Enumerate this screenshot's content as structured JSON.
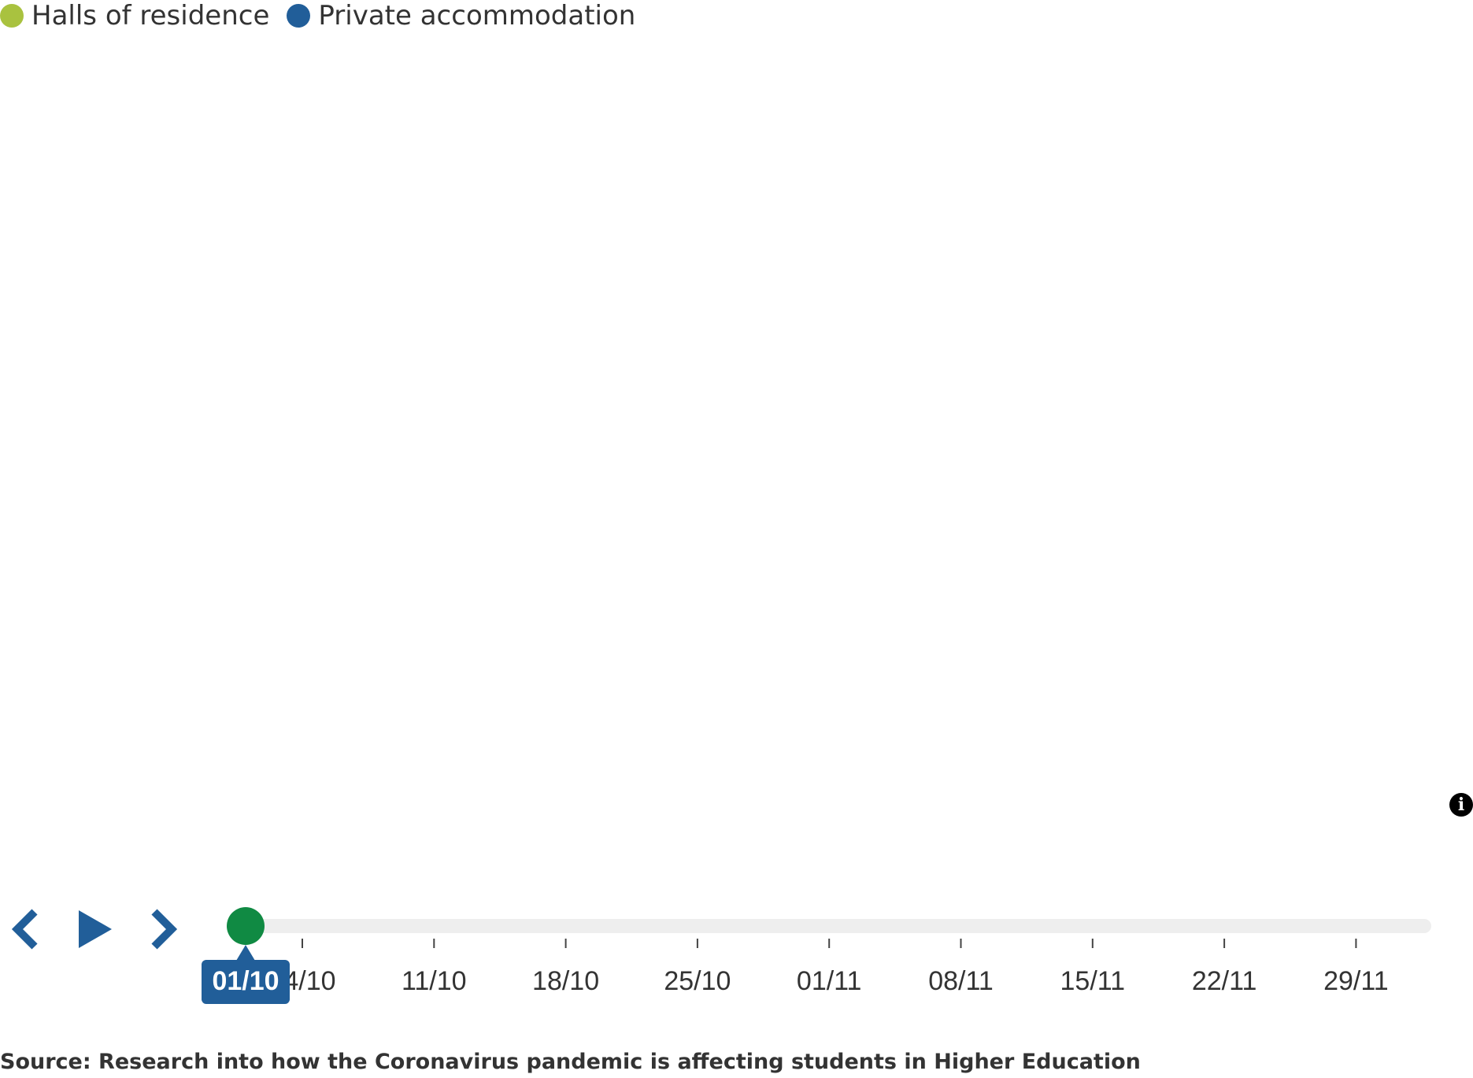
{
  "legend": {
    "items": [
      {
        "label": "Halls of residence",
        "color": "#a9c23f"
      },
      {
        "label": "Private accommodation",
        "color": "#215e99"
      }
    ]
  },
  "chart_data": {
    "type": "scatter",
    "title": "",
    "xlabel": "",
    "ylabel": "",
    "series": [
      {
        "name": "Halls of residence",
        "color": "#a9c23f",
        "values": []
      },
      {
        "name": "Private accommodation",
        "color": "#215e99",
        "values": []
      }
    ],
    "legend_position": "top-left"
  },
  "timeline": {
    "ticks": [
      "04/10",
      "11/10",
      "18/10",
      "25/10",
      "01/11",
      "08/11",
      "15/11",
      "22/11",
      "29/11"
    ],
    "current_label": "01/10",
    "progress": 0,
    "accent_color": "#215e99",
    "handle_color": "#108a43",
    "track_color": "#eeeeee"
  },
  "controls": {
    "prev_icon": "chevron-left-icon",
    "play_icon": "play-icon",
    "next_icon": "chevron-right-icon"
  },
  "info": {
    "glyph": "i"
  },
  "source": {
    "text": "Source: Research into how the Coronavirus pandemic is affecting students in Higher Education"
  }
}
